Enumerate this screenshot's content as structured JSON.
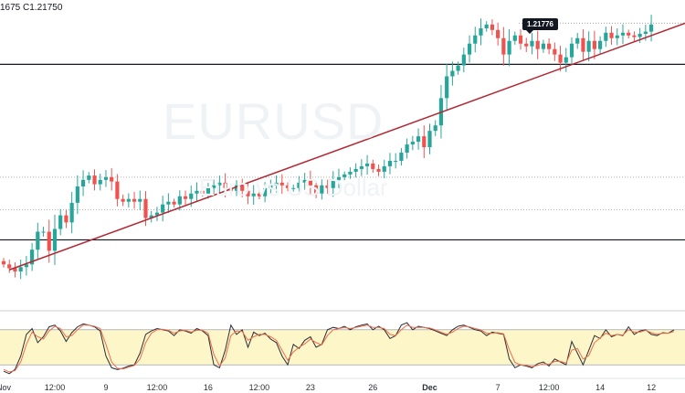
{
  "header": {
    "ohlc_text": "1675  C1.21750"
  },
  "price_badge": {
    "value": "1.21776"
  },
  "watermark": {
    "symbol": "EURUSD",
    "description": "Euro vs US Dollar"
  },
  "chart_data": {
    "type": "candlestick",
    "symbol": "EURUSD",
    "highlighted_price": 1.21776,
    "ylim": [
      1.165,
      1.222
    ],
    "x_tick_labels": [
      {
        "label": "Nov",
        "bar": 0
      },
      {
        "label": "12:00",
        "bar": 9
      },
      {
        "label": "9",
        "bar": 18
      },
      {
        "label": "12:00",
        "bar": 27
      },
      {
        "label": "16",
        "bar": 36
      },
      {
        "label": "12:00",
        "bar": 45
      },
      {
        "label": "23",
        "bar": 54
      },
      {
        "label": "26",
        "bar": 65
      },
      {
        "label": "Dec",
        "bar": 75,
        "bold": true
      },
      {
        "label": "7",
        "bar": 87
      },
      {
        "label": "12:00",
        "bar": 96
      },
      {
        "label": "14",
        "bar": 105
      },
      {
        "label": "12",
        "bar": 114
      }
    ],
    "horizontal_levels": [
      {
        "price": 1.2102,
        "style": "solid"
      },
      {
        "price": 1.1895,
        "style": "dotted"
      },
      {
        "price": 1.1835,
        "style": "dotted"
      },
      {
        "price": 1.178,
        "style": "solid"
      }
    ],
    "trendline": {
      "start": {
        "bar": 1,
        "price": 1.1725
      },
      "end": {
        "bar": 118,
        "price": 1.217
      }
    },
    "closes": [
      1.1735,
      1.1728,
      1.1722,
      1.173,
      1.1735,
      1.1762,
      1.1795,
      1.1795,
      1.176,
      1.18,
      1.1825,
      1.1812,
      1.1848,
      1.1878,
      1.189,
      1.1898,
      1.1882,
      1.189,
      1.1895,
      1.1887,
      1.1855,
      1.185,
      1.1855,
      1.185,
      1.1855,
      1.182,
      1.1825,
      1.183,
      1.1845,
      1.185,
      1.1845,
      1.186,
      1.1855,
      1.1865,
      1.187,
      1.1865,
      1.1875,
      1.188,
      1.1885,
      1.1875,
      1.187,
      1.188,
      1.187,
      1.186,
      1.1865,
      1.186,
      1.1875,
      1.188,
      1.1885,
      1.188,
      1.1875,
      1.1875,
      1.1885,
      1.189,
      1.188,
      1.1865,
      1.188,
      1.1875,
      1.189,
      1.1895,
      1.19,
      1.1905,
      1.191,
      1.1915,
      1.192,
      1.191,
      1.1905,
      1.1915,
      1.1925,
      1.1925,
      1.194,
      1.1955,
      1.196,
      1.197,
      1.195,
      1.198,
      1.199,
      1.204,
      1.208,
      1.209,
      1.21,
      1.212,
      1.214,
      1.2155,
      1.2168,
      1.2175,
      1.2165,
      1.215,
      1.212,
      1.2145,
      1.2155,
      1.214,
      1.2135,
      1.2145,
      1.213,
      1.214,
      1.213,
      1.212,
      1.2105,
      1.2115,
      1.214,
      1.215,
      1.2125,
      1.2145,
      1.213,
      1.2145,
      1.216,
      1.215,
      1.2155,
      1.216,
      1.2155,
      1.2152,
      1.2158,
      1.2162,
      1.2175
    ]
  },
  "stoch_data": {
    "type": "line",
    "ylim": [
      0,
      100
    ],
    "band": [
      20,
      80
    ],
    "series": [
      {
        "color": "#2a2e39",
        "values": [
          9,
          5,
          12,
          35,
          72,
          82,
          58,
          68,
          85,
          88,
          78,
          60,
          75,
          85,
          90,
          88,
          85,
          78,
          35,
          15,
          12,
          14,
          18,
          20,
          40,
          72,
          78,
          82,
          80,
          78,
          70,
          80,
          78,
          74,
          82,
          78,
          70,
          20,
          15,
          45,
          88,
          72,
          80,
          50,
          76,
          70,
          74,
          64,
          58,
          35,
          20,
          55,
          48,
          62,
          68,
          50,
          55,
          80,
          84,
          82,
          86,
          80,
          85,
          88,
          90,
          80,
          86,
          80,
          65,
          70,
          88,
          92,
          80,
          86,
          84,
          82,
          78,
          74,
          70,
          80,
          86,
          88,
          84,
          80,
          78,
          70,
          76,
          74,
          72,
          30,
          15,
          20,
          18,
          15,
          22,
          25,
          18,
          30,
          25,
          20,
          60,
          40,
          20,
          45,
          70,
          65,
          80,
          68,
          72,
          70,
          85,
          72,
          78,
          80,
          72,
          70,
          75,
          74,
          80
        ]
      },
      {
        "color": "#f06d4b",
        "values": [
          12,
          8,
          10,
          25,
          55,
          76,
          68,
          64,
          78,
          86,
          82,
          68,
          70,
          80,
          88,
          88,
          86,
          82,
          55,
          25,
          14,
          13,
          16,
          19,
          30,
          58,
          74,
          80,
          81,
          79,
          74,
          78,
          79,
          76,
          79,
          79,
          74,
          38,
          18,
          32,
          70,
          78,
          77,
          62,
          68,
          72,
          72,
          68,
          62,
          45,
          28,
          42,
          50,
          56,
          64,
          58,
          54,
          70,
          80,
          82,
          84,
          82,
          84,
          86,
          88,
          84,
          84,
          82,
          72,
          70,
          80,
          88,
          84,
          84,
          84,
          83,
          80,
          76,
          72,
          76,
          82,
          86,
          85,
          82,
          80,
          74,
          74,
          75,
          73,
          46,
          24,
          20,
          19,
          17,
          19,
          22,
          21,
          26,
          26,
          23,
          45,
          48,
          30,
          36,
          58,
          66,
          74,
          70,
          72,
          71,
          80,
          76,
          76,
          79,
          75,
          72,
          74,
          74,
          77
        ]
      }
    ]
  }
}
